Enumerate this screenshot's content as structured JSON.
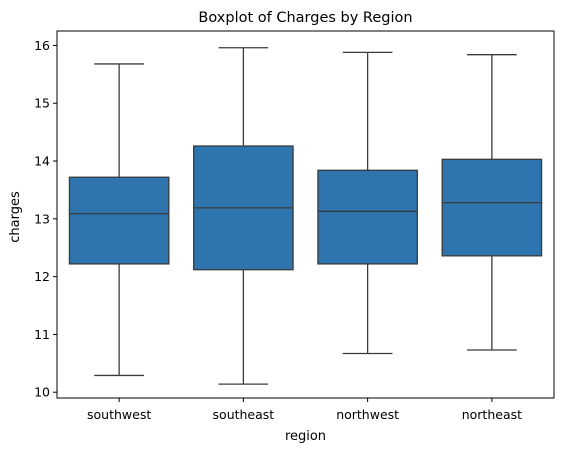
{
  "chart_data": {
    "type": "boxplot",
    "title": "Boxplot of Charges by Region",
    "xlabel": "region",
    "ylabel": "charges",
    "ylim": [
      9.9,
      16.25
    ],
    "yticks": [
      10,
      11,
      12,
      13,
      14,
      15,
      16
    ],
    "grid": false,
    "box_color": "#2e75b0",
    "line_color": "#3b3b3b",
    "categories": [
      "southwest",
      "southeast",
      "northwest",
      "northeast"
    ],
    "boxes": [
      {
        "category": "southwest",
        "whisker_low": 10.29,
        "q1": 12.22,
        "median": 13.09,
        "q3": 13.72,
        "whisker_high": 15.68
      },
      {
        "category": "southeast",
        "whisker_low": 10.14,
        "q1": 12.12,
        "median": 13.19,
        "q3": 14.26,
        "whisker_high": 15.96
      },
      {
        "category": "northwest",
        "whisker_low": 10.67,
        "q1": 12.22,
        "median": 13.13,
        "q3": 13.84,
        "whisker_high": 15.88
      },
      {
        "category": "northeast",
        "whisker_low": 10.73,
        "q1": 12.36,
        "median": 13.28,
        "q3": 14.03,
        "whisker_high": 15.84
      }
    ]
  }
}
